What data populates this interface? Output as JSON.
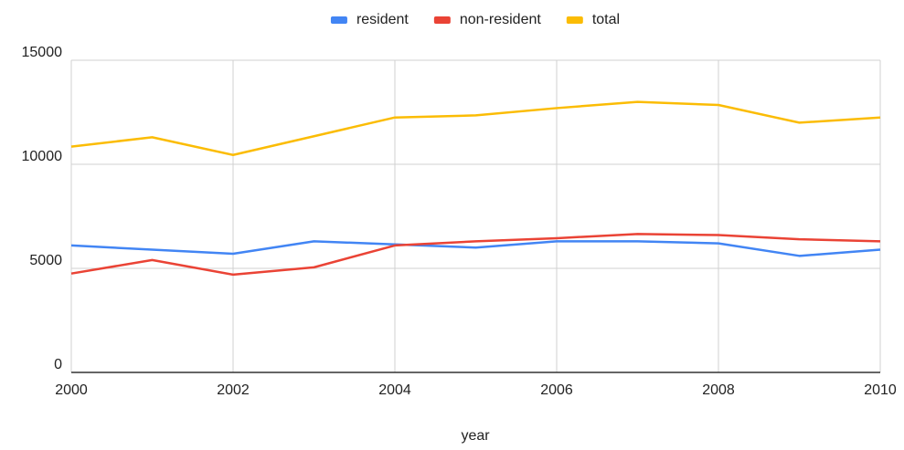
{
  "chart_data": {
    "type": "line",
    "x_label": "year",
    "x": [
      2000,
      2001,
      2002,
      2003,
      2004,
      2005,
      2006,
      2007,
      2008,
      2009,
      2010
    ],
    "series": [
      {
        "name": "resident",
        "color": "#4285f4",
        "values": [
          6100,
          5900,
          5700,
          6300,
          6150,
          6000,
          6300,
          6300,
          6200,
          5600,
          5900
        ]
      },
      {
        "name": "non-resident",
        "color": "#ea4335",
        "values": [
          4750,
          5400,
          4700,
          5050,
          6100,
          6300,
          6450,
          6650,
          6600,
          6400,
          6300
        ]
      },
      {
        "name": "total",
        "color": "#fbbc04",
        "values": [
          10850,
          11300,
          10450,
          11350,
          12250,
          12350,
          12700,
          13000,
          12850,
          12000,
          12250
        ]
      }
    ],
    "xlim": [
      2000,
      2010
    ],
    "xticks": [
      2000,
      2002,
      2004,
      2006,
      2008,
      2010
    ],
    "ylim": [
      0,
      15000
    ],
    "yticks": [
      0,
      5000,
      10000,
      15000
    ],
    "grid": true,
    "legend": "top"
  }
}
